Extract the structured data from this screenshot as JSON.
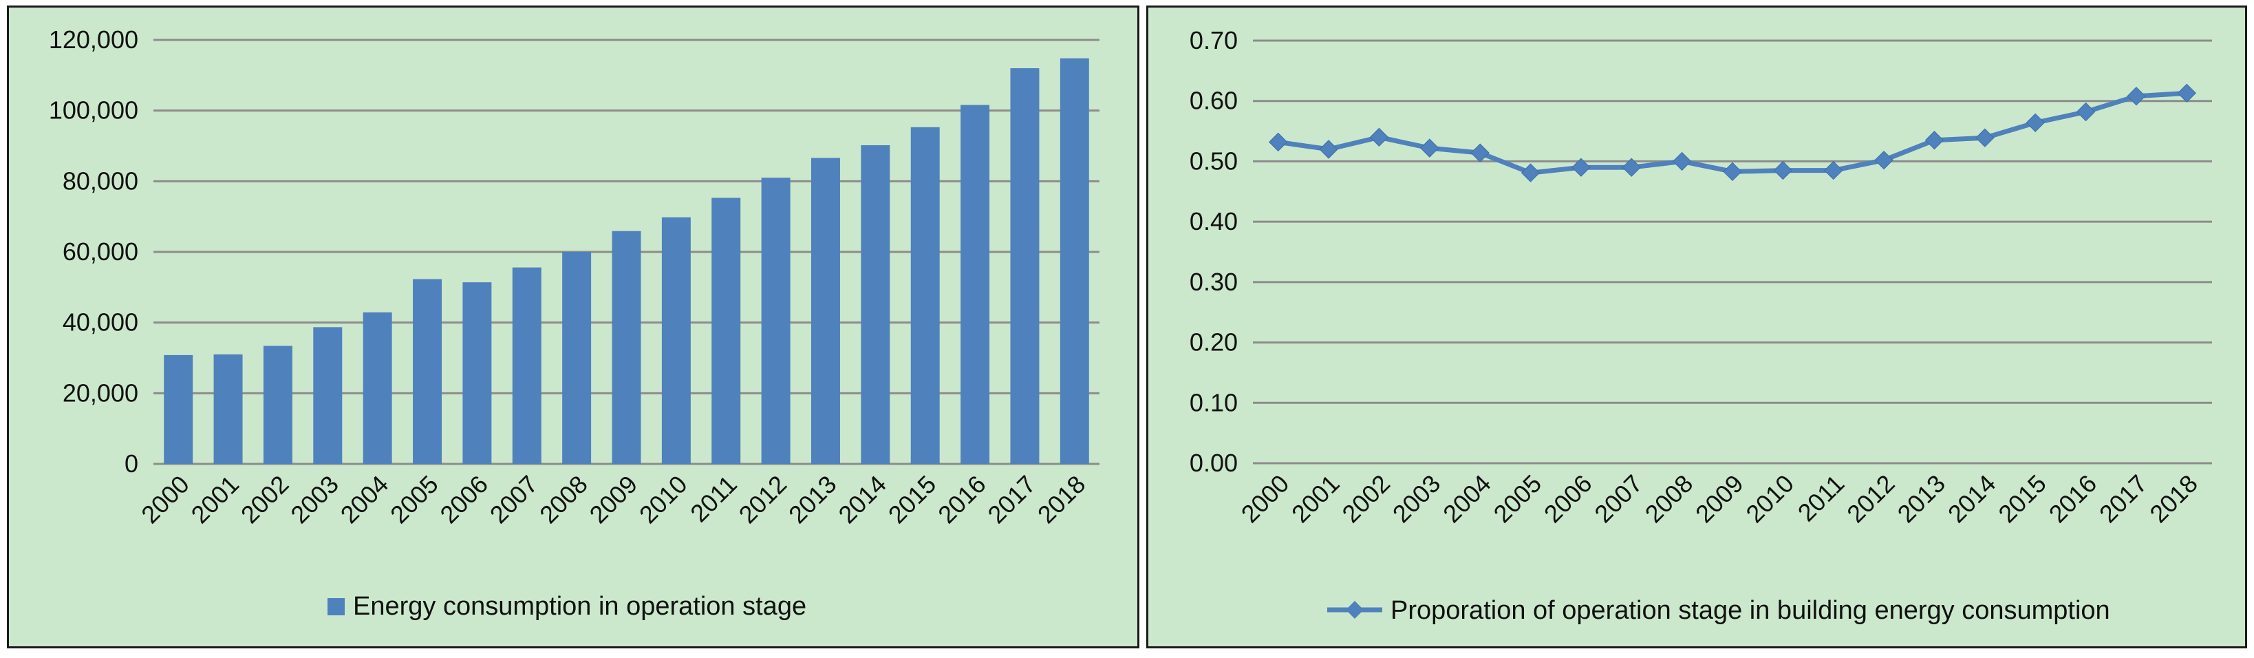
{
  "chart_data": [
    {
      "type": "bar",
      "categories": [
        "2000",
        "2001",
        "2002",
        "2003",
        "2004",
        "2005",
        "2006",
        "2007",
        "2008",
        "2009",
        "2010",
        "2011",
        "2012",
        "2013",
        "2014",
        "2015",
        "2016",
        "2017",
        "2018"
      ],
      "series": [
        {
          "name": "Energy consumption in operation stage",
          "values": [
            30800,
            31000,
            33400,
            38700,
            42900,
            52300,
            51400,
            55600,
            60000,
            65900,
            69800,
            75300,
            81000,
            86600,
            90200,
            95300,
            101600,
            112000,
            114800
          ]
        }
      ],
      "ylim": [
        0,
        120000
      ],
      "yticks": [
        0,
        20000,
        40000,
        60000,
        80000,
        100000,
        120000
      ],
      "ytick_labels": [
        "0",
        "20,000",
        "40,000",
        "60,000",
        "80,000",
        "100,000",
        "120,000"
      ],
      "grid": true,
      "legend": "bottom",
      "title": "",
      "xlabel": "",
      "ylabel": "",
      "color": "#4f81bd"
    },
    {
      "type": "line",
      "categories": [
        "2000",
        "2001",
        "2002",
        "2003",
        "2004",
        "2005",
        "2006",
        "2007",
        "2008",
        "2009",
        "2010",
        "2011",
        "2012",
        "2013",
        "2014",
        "2015",
        "2016",
        "2017",
        "2018"
      ],
      "series": [
        {
          "name": "Proporation of operation stage in building energy consumption",
          "values": [
            0.532,
            0.52,
            0.54,
            0.522,
            0.514,
            0.481,
            0.49,
            0.49,
            0.5,
            0.483,
            0.485,
            0.485,
            0.502,
            0.535,
            0.539,
            0.564,
            0.582,
            0.608,
            0.613
          ]
        }
      ],
      "ylim": [
        0,
        0.7
      ],
      "yticks": [
        0,
        0.1,
        0.2,
        0.3,
        0.4,
        0.5,
        0.6,
        0.7
      ],
      "ytick_labels": [
        "0.00",
        "0.10",
        "0.20",
        "0.30",
        "0.40",
        "0.50",
        "0.60",
        "0.70"
      ],
      "grid": true,
      "legend": "bottom",
      "title": "",
      "xlabel": "",
      "ylabel": "",
      "color": "#4f81bd",
      "marker": "diamond"
    }
  ]
}
